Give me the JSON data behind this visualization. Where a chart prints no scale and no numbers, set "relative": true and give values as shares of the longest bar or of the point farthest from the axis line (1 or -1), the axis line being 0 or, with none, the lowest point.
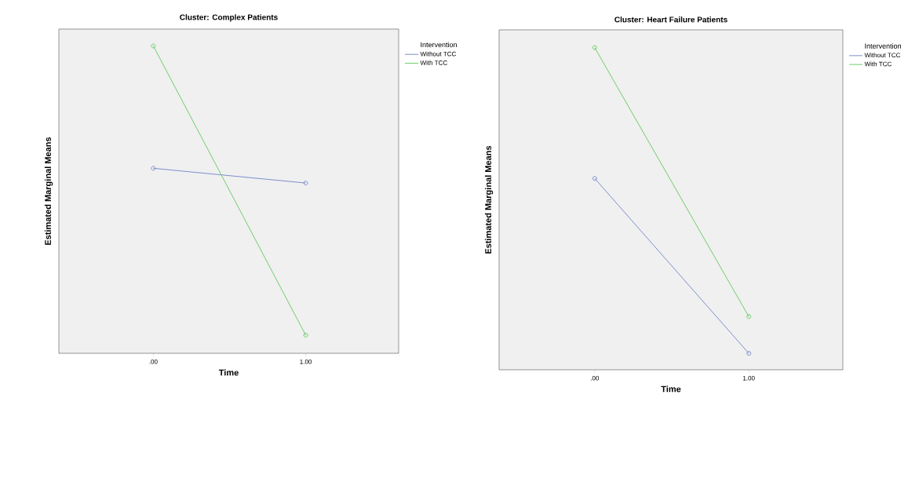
{
  "chart_data": [
    {
      "type": "line",
      "title": "Cluster: Complex Patients",
      "xlabel": "Time",
      "ylabel": "Estimated Marginal Means",
      "legend_title": "Intervention",
      "relative": true,
      "categories": [
        ".00",
        "1.00"
      ],
      "tick_labels": "x",
      "legend": "right",
      "marker": "circle",
      "line_style": "solid",
      "series": [
        {
          "name": "Without TCC",
          "color": "#7083c8",
          "values": [
            0.602,
            0.554
          ]
        },
        {
          "name": "With TCC",
          "color": "#5cc95c",
          "values": [
            1,
            0.059
          ]
        }
      ]
    },
    {
      "type": "line",
      "title": "Cluster: Heart Failure Patients",
      "xlabel": "Time",
      "ylabel": "Estimated Marginal Means",
      "legend_title": "Intervention",
      "relative": true,
      "categories": [
        ".00",
        "1.00"
      ],
      "tick_labels": "x",
      "legend": "right",
      "marker": "circle",
      "line_style": "solid",
      "series": [
        {
          "name": "Without TCC",
          "color": "#7083c8",
          "values": [
            0.594,
            0.051
          ]
        },
        {
          "name": "With TCC",
          "color": "#5cc95c",
          "values": [
            1,
            0.165
          ]
        }
      ]
    }
  ]
}
